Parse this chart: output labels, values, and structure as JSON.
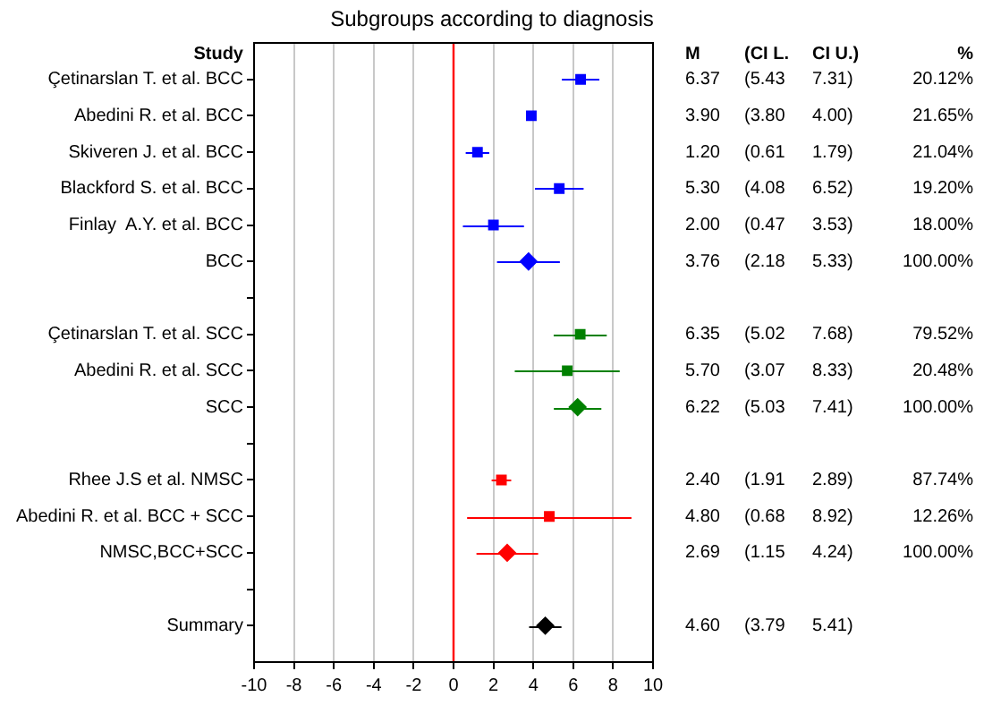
{
  "chart_data": {
    "type": "scatter",
    "orientation": "horizontal",
    "title": "Subgroups according to diagnosis",
    "ylabel": "Study",
    "categories": [
      "Çetinarslan T. et al. BCC",
      "Abedini R. et al. BCC",
      "Skiveren J. et al. BCC",
      "Blackford S. et al. BCC",
      "Finlay  A.Y. et al. BCC",
      "BCC",
      null,
      "Çetinarslan T. et al. SCC",
      "Abedini R. et al. SCC",
      "SCC",
      null,
      "Rhee J.S et al. NMSC",
      "Abedini R. et al. BCC + SCC",
      "NMSC,BCC+SCC",
      null,
      "Summary"
    ],
    "series": [
      {
        "color": "#0000ff",
        "marker": "square",
        "values": [
          6.37,
          3.9,
          1.2,
          5.3,
          2.0,
          null,
          null,
          null,
          null,
          null,
          null,
          null,
          null,
          null,
          null,
          null
        ],
        "errors": [
          [
            5.43,
            7.31
          ],
          [
            3.8,
            4.0
          ],
          [
            0.61,
            1.79
          ],
          [
            4.08,
            6.52
          ],
          [
            0.47,
            3.53
          ],
          null,
          null,
          null,
          null,
          null,
          null,
          null,
          null,
          null,
          null,
          null
        ]
      },
      {
        "color": "#0000ff",
        "marker": "diamond",
        "values": [
          null,
          null,
          null,
          null,
          null,
          3.76,
          null,
          null,
          null,
          null,
          null,
          null,
          null,
          null,
          null,
          null
        ],
        "errors": [
          null,
          null,
          null,
          null,
          null,
          [
            2.18,
            5.33
          ],
          null,
          null,
          null,
          null,
          null,
          null,
          null,
          null,
          null,
          null
        ]
      },
      {
        "color": "#008000",
        "marker": "square",
        "values": [
          null,
          null,
          null,
          null,
          null,
          null,
          null,
          6.35,
          5.7,
          null,
          null,
          null,
          null,
          null,
          null,
          null
        ],
        "errors": [
          null,
          null,
          null,
          null,
          null,
          null,
          null,
          [
            5.02,
            7.68
          ],
          [
            3.07,
            8.33
          ],
          null,
          null,
          null,
          null,
          null,
          null,
          null
        ]
      },
      {
        "color": "#008000",
        "marker": "diamond",
        "values": [
          null,
          null,
          null,
          null,
          null,
          null,
          null,
          null,
          null,
          6.22,
          null,
          null,
          null,
          null,
          null,
          null
        ],
        "errors": [
          null,
          null,
          null,
          null,
          null,
          null,
          null,
          null,
          null,
          [
            5.03,
            7.41
          ],
          null,
          null,
          null,
          null,
          null,
          null
        ]
      },
      {
        "color": "#ff0000",
        "marker": "square",
        "values": [
          null,
          null,
          null,
          null,
          null,
          null,
          null,
          null,
          null,
          null,
          null,
          2.4,
          4.8,
          null,
          null,
          null
        ],
        "errors": [
          null,
          null,
          null,
          null,
          null,
          null,
          null,
          null,
          null,
          null,
          null,
          [
            1.91,
            2.89
          ],
          [
            0.68,
            8.92
          ],
          null,
          null,
          null
        ]
      },
      {
        "color": "#ff0000",
        "marker": "diamond",
        "values": [
          null,
          null,
          null,
          null,
          null,
          null,
          null,
          null,
          null,
          null,
          null,
          null,
          null,
          2.69,
          null,
          null
        ],
        "errors": [
          null,
          null,
          null,
          null,
          null,
          null,
          null,
          null,
          null,
          null,
          null,
          null,
          null,
          [
            1.15,
            4.24
          ],
          null,
          null
        ]
      },
      {
        "color": "#000000",
        "marker": "diamond",
        "values": [
          null,
          null,
          null,
          null,
          null,
          null,
          null,
          null,
          null,
          null,
          null,
          null,
          null,
          null,
          null,
          4.6
        ],
        "errors": [
          null,
          null,
          null,
          null,
          null,
          null,
          null,
          null,
          null,
          null,
          null,
          null,
          null,
          null,
          null,
          [
            3.79,
            5.41
          ]
        ]
      }
    ],
    "xlim": [
      -10,
      10
    ],
    "xticks": [
      -10,
      -8,
      -6,
      -4,
      -2,
      0,
      2,
      4,
      6,
      8,
      10
    ],
    "grid": "x",
    "legend": false,
    "ref_lines": [
      {
        "axis": "x",
        "value": 0,
        "color": "#ff0000"
      }
    ],
    "annotations": [
      "M",
      "(CI L.",
      "CI U.)",
      "%",
      "6.37",
      "(5.43",
      "7.31)",
      "20.12%",
      "3.90",
      "(3.80",
      "4.00)",
      "21.65%",
      "1.20",
      "(0.61",
      "1.79)",
      "21.04%",
      "5.30",
      "(4.08",
      "6.52)",
      "19.20%",
      "2.00",
      "(0.47",
      "3.53)",
      "18.00%",
      "3.76",
      "(2.18",
      "5.33)",
      "100.00%",
      "6.35",
      "(5.02",
      "7.68)",
      "79.52%",
      "5.70",
      "(3.07",
      "8.33)",
      "20.48%",
      "6.22",
      "(5.03",
      "7.41)",
      "100.00%",
      "2.40",
      "(1.91",
      "2.89)",
      "87.74%",
      "4.80",
      "(0.68",
      "8.92)",
      "12.26%",
      "2.69",
      "(1.15",
      "4.24)",
      "100.00%",
      "4.60",
      "(3.79",
      "5.41)"
    ]
  }
}
